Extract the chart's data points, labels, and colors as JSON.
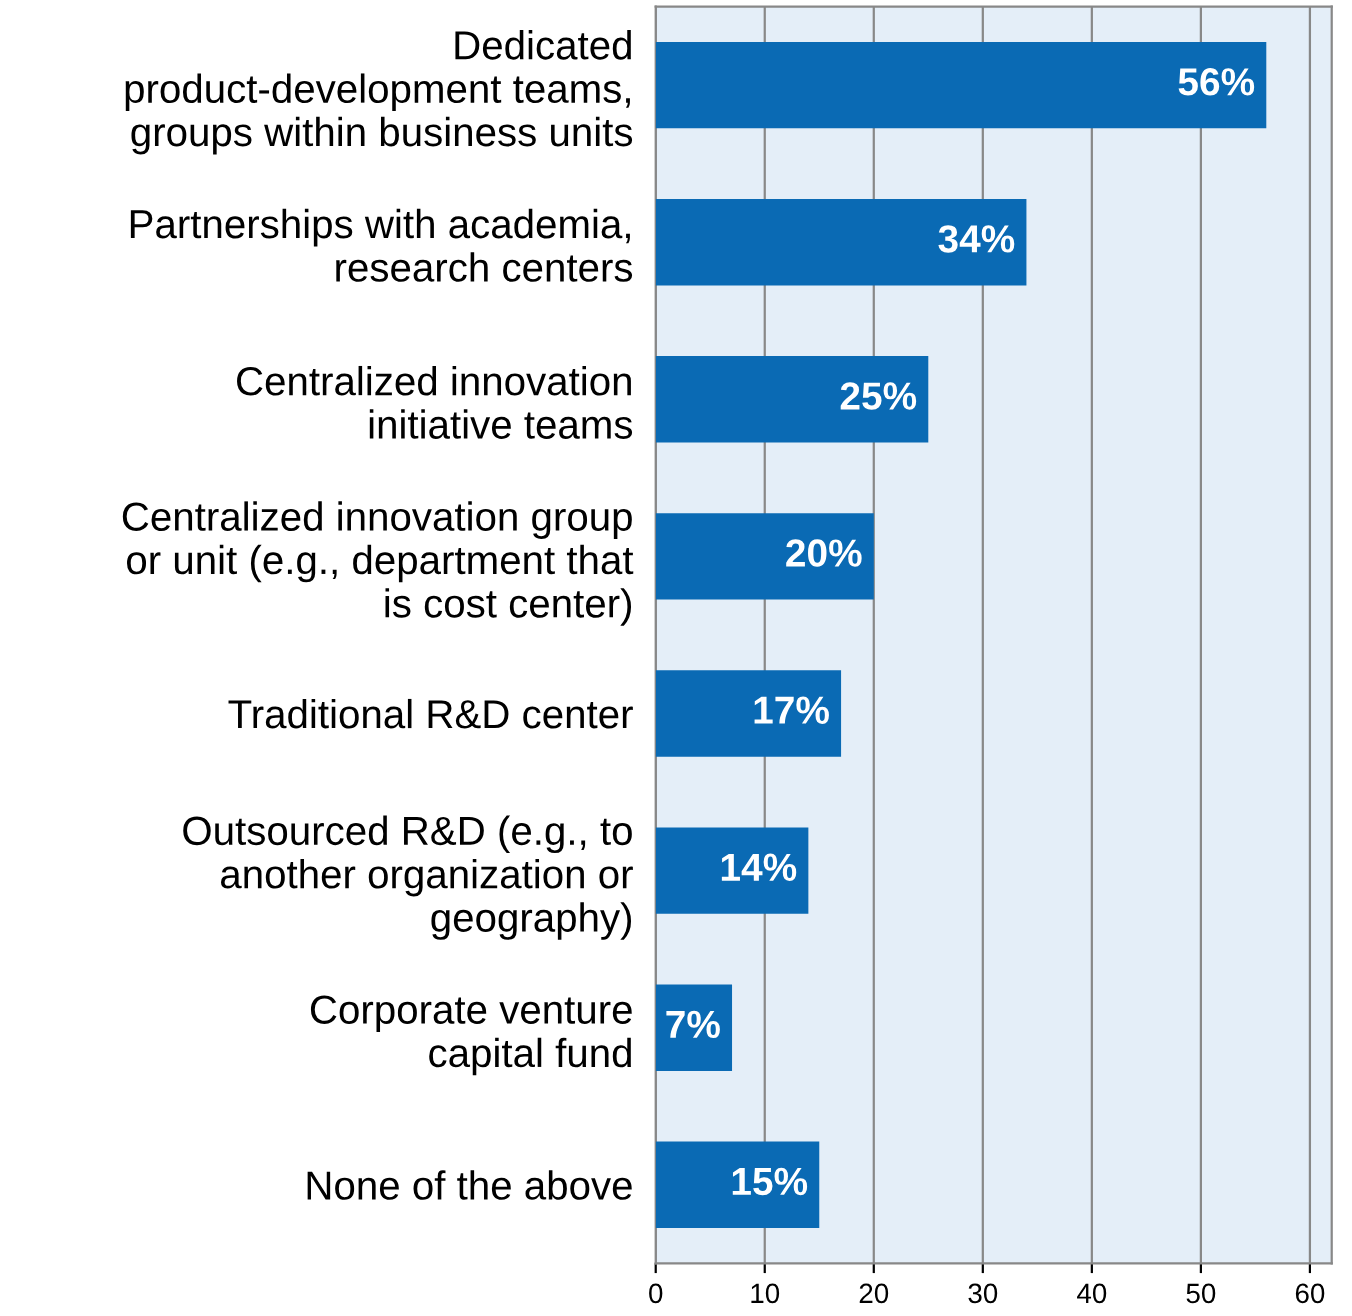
{
  "chart_data": {
    "type": "bar",
    "orientation": "horizontal",
    "categories": [
      "Dedicated\nproduct-development teams,\ngroups within business units",
      "Partnerships with academia,\nresearch centers",
      "Centralized innovation\ninitiative teams",
      "Centralized innovation group\nor unit (e.g., department that\nis cost center)",
      "Traditional R&D center",
      "Outsourced R&D (e.g., to\nanother organization or\ngeography)",
      "Corporate venture\ncapital fund",
      "None of the above"
    ],
    "values": [
      56,
      34,
      25,
      20,
      17,
      14,
      7,
      15
    ],
    "value_labels": [
      "56%",
      "34%",
      "25%",
      "20%",
      "17%",
      "14%",
      "7%",
      "15%"
    ],
    "color": "#0a6ab4",
    "xlim": [
      0,
      62
    ],
    "xticks": [
      0,
      10,
      20,
      30,
      40,
      50,
      60
    ],
    "grid": "x",
    "legend": false
  }
}
